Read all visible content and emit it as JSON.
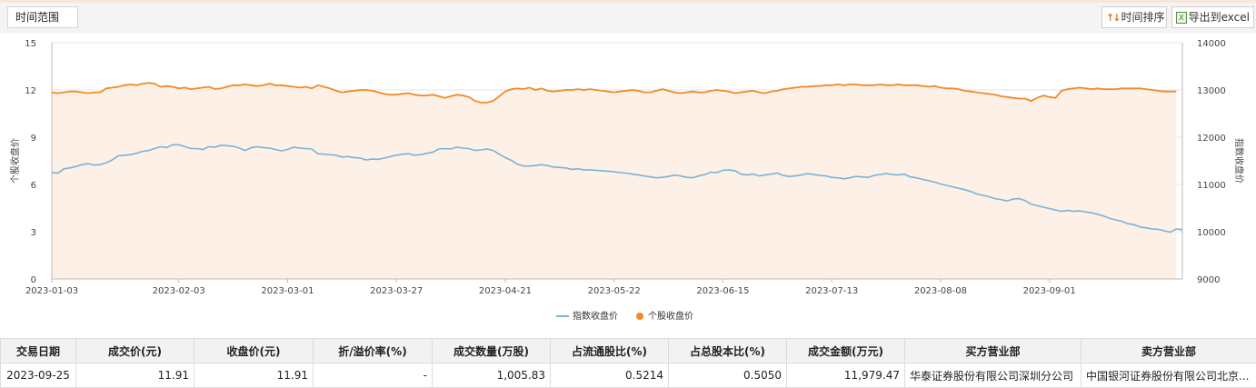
{
  "toolbar": {
    "range_label": "时间范围",
    "sort_label": "时间排序",
    "export_label": "导出到excel",
    "sort_icon": "sort-arrows-icon",
    "export_icon": "excel-icon"
  },
  "chart_data": {
    "type": "line",
    "title": "",
    "left_axis": {
      "label": "个股收盘价",
      "ticks": [
        "0",
        "3",
        "6",
        "9",
        "12",
        "15"
      ],
      "range": [
        0,
        15
      ]
    },
    "right_axis": {
      "label": "指数收盘价",
      "ticks": [
        "9000",
        "10000",
        "11000",
        "12000",
        "13000",
        "14000"
      ],
      "range": [
        9000,
        14000
      ]
    },
    "x_ticks": [
      "2023-01-03",
      "2023-02-03",
      "2023-03-01",
      "2023-03-27",
      "2023-04-21",
      "2023-05-22",
      "2023-06-15",
      "2023-07-13",
      "2023-08-08",
      "2023-09-01"
    ],
    "x_tick_index": [
      0,
      21,
      39,
      57,
      75,
      93,
      111,
      129,
      147,
      165
    ],
    "grid": true,
    "legend_position": "bottom-center",
    "colors": {
      "index": "#7ab3d8",
      "stock": "#f28a28",
      "area": "#fdf0e6",
      "grid": "#e4e4e4"
    },
    "series": [
      {
        "name": "指数收盘价",
        "axis": "right",
        "values": [
          11250,
          11240,
          11330,
          11350,
          11380,
          11420,
          11440,
          11410,
          11420,
          11460,
          11520,
          11610,
          11620,
          11630,
          11660,
          11700,
          11720,
          11760,
          11800,
          11780,
          11840,
          11840,
          11800,
          11760,
          11760,
          11740,
          11800,
          11790,
          11830,
          11820,
          11810,
          11770,
          11720,
          11780,
          11800,
          11780,
          11770,
          11740,
          11710,
          11740,
          11790,
          11770,
          11760,
          11750,
          11650,
          11640,
          11630,
          11620,
          11580,
          11590,
          11570,
          11560,
          11520,
          11540,
          11530,
          11560,
          11590,
          11620,
          11640,
          11650,
          11620,
          11630,
          11660,
          11680,
          11750,
          11760,
          11750,
          11790,
          11770,
          11760,
          11720,
          11730,
          11750,
          11720,
          11640,
          11570,
          11510,
          11430,
          11390,
          11390,
          11400,
          11420,
          11400,
          11370,
          11360,
          11350,
          11320,
          11330,
          11310,
          11310,
          11300,
          11290,
          11280,
          11270,
          11250,
          11240,
          11220,
          11200,
          11180,
          11160,
          11140,
          11150,
          11170,
          11200,
          11180,
          11150,
          11140,
          11180,
          11210,
          11260,
          11250,
          11300,
          11310,
          11290,
          11220,
          11200,
          11220,
          11180,
          11200,
          11220,
          11240,
          11190,
          11170,
          11180,
          11200,
          11230,
          11210,
          11190,
          11180,
          11150,
          11140,
          11120,
          11140,
          11170,
          11160,
          11150,
          11190,
          11210,
          11230,
          11210,
          11200,
          11220,
          11160,
          11140,
          11110,
          11080,
          11050,
          11010,
          10980,
          10950,
          10920,
          10890,
          10850,
          10800,
          10770,
          10740,
          10700,
          10680,
          10650,
          10690,
          10700,
          10660,
          10580,
          10550,
          10520,
          10490,
          10460,
          10430,
          10450,
          10430,
          10440,
          10420,
          10400,
          10370,
          10330,
          10280,
          10250,
          10220,
          10170,
          10150,
          10100,
          10080,
          10060,
          10050,
          10020,
          9990,
          10060,
          10040
        ]
      },
      {
        "name": "个股收盘价",
        "axis": "left",
        "values": [
          11.85,
          11.8,
          11.85,
          11.9,
          11.9,
          11.85,
          11.8,
          11.85,
          11.85,
          12.1,
          12.15,
          12.2,
          12.3,
          12.35,
          12.3,
          12.4,
          12.45,
          12.4,
          12.2,
          12.25,
          12.2,
          12.1,
          12.15,
          12.05,
          12.1,
          12.15,
          12.2,
          12.05,
          12.1,
          12.2,
          12.3,
          12.3,
          12.35,
          12.3,
          12.25,
          12.3,
          12.4,
          12.3,
          12.3,
          12.25,
          12.2,
          12.15,
          12.2,
          12.1,
          12.3,
          12.2,
          12.1,
          11.95,
          11.85,
          11.9,
          11.95,
          12.0,
          12.0,
          11.95,
          11.85,
          11.75,
          11.7,
          11.7,
          11.75,
          11.8,
          11.7,
          11.65,
          11.65,
          11.7,
          11.6,
          11.5,
          11.6,
          11.7,
          11.65,
          11.55,
          11.3,
          11.2,
          11.2,
          11.3,
          11.6,
          11.9,
          12.05,
          12.1,
          12.05,
          12.15,
          12.0,
          12.1,
          11.95,
          11.9,
          11.95,
          12.0,
          12.0,
          12.05,
          12.0,
          12.05,
          12.0,
          11.95,
          11.9,
          11.85,
          11.9,
          11.95,
          12.0,
          11.95,
          11.85,
          11.85,
          11.95,
          12.05,
          11.95,
          11.85,
          11.8,
          11.85,
          11.9,
          11.85,
          11.85,
          11.95,
          12.0,
          11.95,
          11.9,
          11.8,
          11.85,
          11.9,
          11.95,
          11.85,
          11.8,
          11.9,
          11.95,
          12.05,
          12.1,
          12.15,
          12.2,
          12.2,
          12.25,
          12.25,
          12.3,
          12.3,
          12.35,
          12.3,
          12.35,
          12.35,
          12.3,
          12.3,
          12.3,
          12.35,
          12.3,
          12.3,
          12.35,
          12.3,
          12.3,
          12.3,
          12.25,
          12.2,
          12.25,
          12.15,
          12.1,
          12.1,
          12.05,
          11.95,
          11.9,
          11.85,
          11.8,
          11.75,
          11.7,
          11.6,
          11.55,
          11.5,
          11.45,
          11.45,
          11.3,
          11.5,
          11.65,
          11.55,
          11.5,
          11.95,
          12.05,
          12.1,
          12.15,
          12.1,
          12.05,
          12.1,
          12.05,
          12.05,
          12.05,
          12.1,
          12.1,
          12.1,
          12.1,
          12.05,
          12.0,
          11.95,
          11.9,
          11.9,
          11.91
        ]
      }
    ]
  },
  "table": {
    "headers": [
      "交易日期",
      "成交价(元)",
      "收盘价(元)",
      "折/溢价率(%)",
      "成交数量(万股)",
      "占流通股比(%)",
      "占总股本比(%)",
      "成交金额(万元)",
      "买方营业部",
      "卖方营业部"
    ],
    "rows": [
      [
        "2023-09-25",
        "11.91",
        "11.91",
        "-",
        "1,005.83",
        "0.5214",
        "0.5050",
        "11,979.47",
        "华泰证券股份有限公司深圳分公司",
        "中国银河证券股份有限公司北京..."
      ]
    ]
  }
}
